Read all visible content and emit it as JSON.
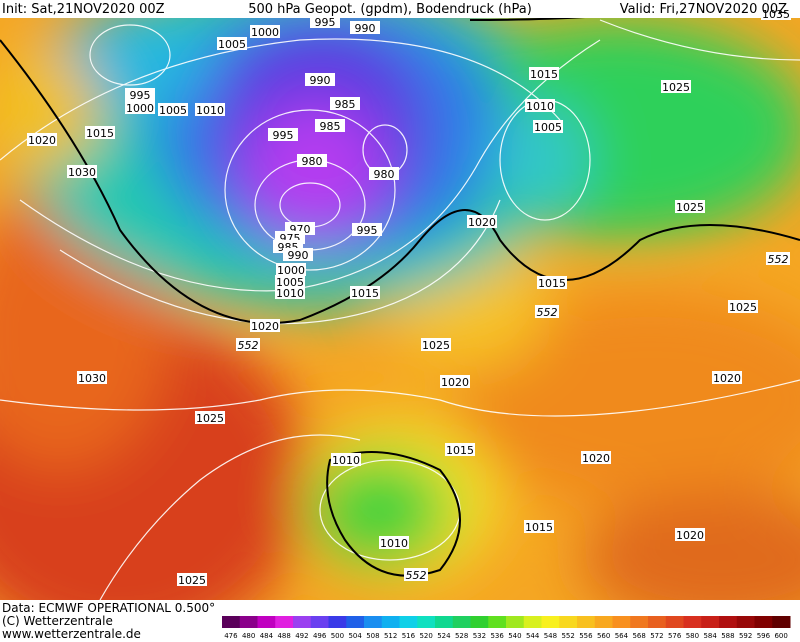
{
  "header": {
    "init": "Init: Sat,21NOV2020 00Z",
    "title": "500 hPa Geopot. (gpdm), Bodendruck (hPa)",
    "valid": "Valid: Fri,27NOV2020 00Z"
  },
  "footer": {
    "data": "Data: ECMWF OPERATIONAL 0.500°",
    "copyright": "(C) Wetterzentrale",
    "url": "www.wetterzentrale.de"
  },
  "isobar_labels": [
    "1035",
    "995",
    "990",
    "1000",
    "1005",
    "990",
    "985",
    "985",
    "995",
    "980",
    "980",
    "970",
    "975",
    "985",
    "990",
    "995",
    "1000",
    "1005",
    "1010",
    "1015",
    "1020",
    "1005",
    "1010",
    "995",
    "1000",
    "1015",
    "1020",
    "1030",
    "1015",
    "1010",
    "1005",
    "1025",
    "1020",
    "1025",
    "1015",
    "1025",
    "1025",
    "1020",
    "1020",
    "1030",
    "1025",
    "1015",
    "1020",
    "1010",
    "1015",
    "1020",
    "1010",
    "1025"
  ],
  "contour_labels": [
    "552",
    "552",
    "552",
    "552"
  ],
  "colorbar": {
    "labels": [
      476,
      480,
      484,
      488,
      492,
      496,
      500,
      504,
      508,
      512,
      516,
      520,
      524,
      528,
      532,
      536,
      540,
      544,
      548,
      552,
      556,
      560,
      564,
      568,
      572,
      576,
      580,
      584,
      588,
      592,
      596,
      600
    ]
  }
}
